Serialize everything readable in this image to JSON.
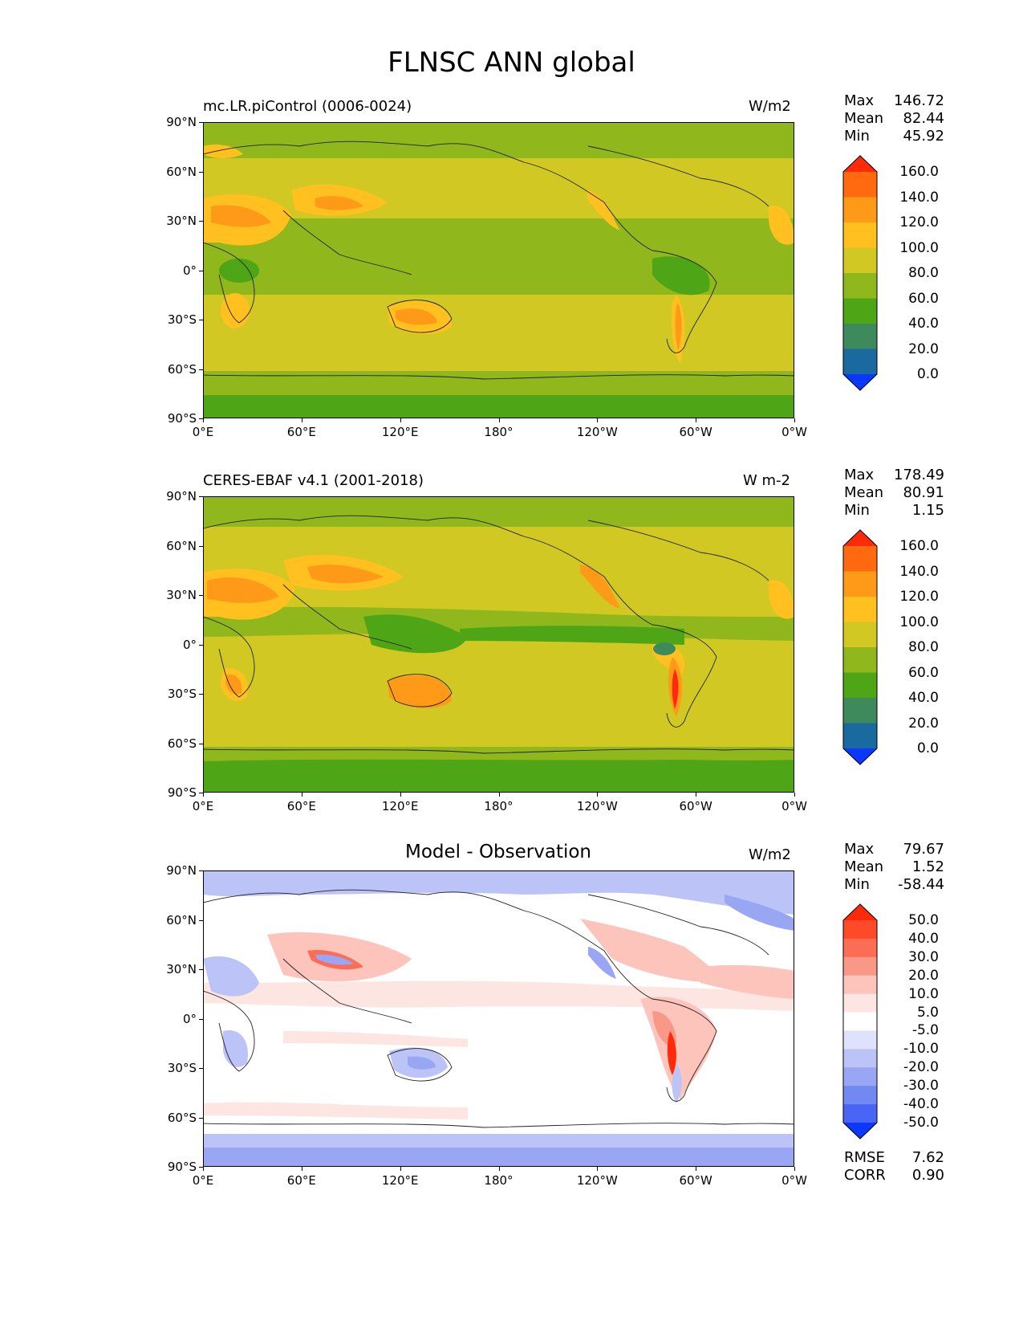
{
  "title": "FLNSC ANN global",
  "x_ticks": [
    "0°E",
    "60°E",
    "120°E",
    "180°",
    "120°W",
    "60°W",
    "0°W"
  ],
  "y_ticks": [
    "90°N",
    "60°N",
    "30°N",
    "0°",
    "30°S",
    "60°S",
    "90°S"
  ],
  "panels": [
    {
      "name": "mc.LR.piControl (0006-0024)",
      "units": "W/m2",
      "stats": {
        "max_label": "Max",
        "max": "146.72",
        "mean_label": "Mean",
        "mean": "82.44",
        "min_label": "Min",
        "min": "45.92"
      },
      "colorbar": {
        "levels": [
          "160.0",
          "140.0",
          "120.0",
          "100.0",
          "80.0",
          "60.0",
          "40.0",
          "20.0",
          "0.0"
        ],
        "colors": [
          "#ff2a0a",
          "#ff6a10",
          "#ff9a18",
          "#ffc020",
          "#d2c823",
          "#90b81c",
          "#4ea516",
          "#3e8a5c",
          "#1a6aa0",
          "#0a38ff"
        ]
      }
    },
    {
      "name": "CERES-EBAF v4.1 (2001-2018)",
      "units": "W m-2",
      "stats": {
        "max_label": "Max",
        "max": "178.49",
        "mean_label": "Mean",
        "mean": "80.91",
        "min_label": "Min",
        "min": "1.15"
      },
      "colorbar": {
        "levels": [
          "160.0",
          "140.0",
          "120.0",
          "100.0",
          "80.0",
          "60.0",
          "40.0",
          "20.0",
          "0.0"
        ],
        "colors": [
          "#ff2a0a",
          "#ff6a10",
          "#ff9a18",
          "#ffc020",
          "#d2c823",
          "#90b81c",
          "#4ea516",
          "#3e8a5c",
          "#1a6aa0",
          "#0a38ff"
        ]
      }
    },
    {
      "name": "Model - Observation",
      "units": "W/m2",
      "stats": {
        "max_label": "Max",
        "max": "79.67",
        "mean_label": "Mean",
        "mean": "1.52",
        "min_label": "Min",
        "min": "-58.44"
      },
      "colorbar": {
        "levels": [
          "50.0",
          "40.0",
          "30.0",
          "20.0",
          "10.0",
          "5.0",
          "-5.0",
          "-10.0",
          "-20.0",
          "-30.0",
          "-40.0",
          "-50.0"
        ],
        "colors": [
          "#ff2a0a",
          "#ff4a2a",
          "#fb6e55",
          "#fa9888",
          "#fcc4ba",
          "#fde6e2",
          "#ffffff",
          "#dfe2fb",
          "#bcc4f7",
          "#98a6f4",
          "#7488f2",
          "#4a64f5",
          "#0a38ff"
        ]
      },
      "footer": {
        "rmse_label": "RMSE",
        "rmse": "7.62",
        "corr_label": "CORR",
        "corr": "0.90"
      }
    }
  ],
  "chart_data": [
    {
      "type": "heatmap",
      "title": "mc.LR.piControl (0006-0024)",
      "units": "W/m2",
      "x_range": [
        0,
        360
      ],
      "y_range": [
        -90,
        90
      ],
      "stats": {
        "max": 146.72,
        "mean": 82.44,
        "min": 45.92
      },
      "levels": [
        0,
        20,
        40,
        60,
        80,
        100,
        120,
        140,
        160
      ],
      "extend": "both"
    },
    {
      "type": "heatmap",
      "title": "CERES-EBAF v4.1 (2001-2018)",
      "units": "W m-2",
      "x_range": [
        0,
        360
      ],
      "y_range": [
        -90,
        90
      ],
      "stats": {
        "max": 178.49,
        "mean": 80.91,
        "min": 1.15
      },
      "levels": [
        0,
        20,
        40,
        60,
        80,
        100,
        120,
        140,
        160
      ],
      "extend": "both"
    },
    {
      "type": "heatmap",
      "title": "Model - Observation",
      "units": "W/m2",
      "x_range": [
        0,
        360
      ],
      "y_range": [
        -90,
        90
      ],
      "stats": {
        "max": 79.67,
        "mean": 1.52,
        "min": -58.44,
        "rmse": 7.62,
        "corr": 0.9
      },
      "levels": [
        -50,
        -40,
        -30,
        -20,
        -10,
        -5,
        5,
        10,
        20,
        30,
        40,
        50
      ],
      "extend": "both"
    }
  ]
}
